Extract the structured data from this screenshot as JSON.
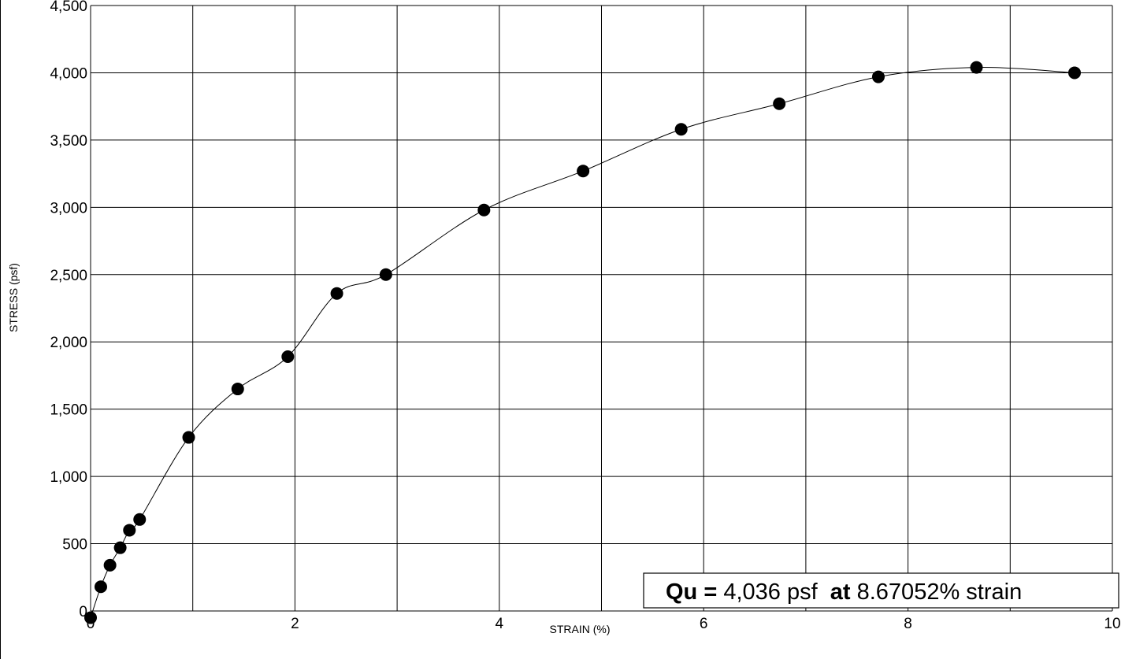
{
  "chart_data": {
    "type": "scatter",
    "xlabel": "STRAIN  (%)",
    "ylabel": "STRESS  (psf)",
    "xlim": [
      0,
      10
    ],
    "ylim": [
      0,
      4500
    ],
    "x_ticks": [
      0,
      2,
      4,
      6,
      8,
      10
    ],
    "x_tick_labels": [
      "0",
      "2",
      "4",
      "6",
      "8",
      "10"
    ],
    "y_ticks": [
      0,
      500,
      1000,
      1500,
      2000,
      2500,
      3000,
      3500,
      4000,
      4500
    ],
    "y_tick_labels": [
      "0",
      "500",
      "1,000",
      "1,500",
      "2,000",
      "2,500",
      "3,000",
      "3,500",
      "4,000",
      "4,500"
    ],
    "x_grid_lines": [
      1,
      2,
      3,
      4,
      5,
      6,
      7,
      8,
      9,
      10
    ],
    "y_grid_lines": [
      500,
      1000,
      1500,
      2000,
      2500,
      3000,
      3500,
      4000,
      4500
    ],
    "grid": true,
    "smooth_curve": true,
    "series": [
      {
        "x": [
          0.0,
          0.1,
          0.19,
          0.29,
          0.38,
          0.48,
          0.96,
          1.44,
          1.93,
          2.41,
          2.89,
          3.85,
          4.82,
          5.78,
          6.74,
          7.71,
          8.67,
          9.63
        ],
        "y": [
          -50,
          180,
          340,
          470,
          600,
          680,
          1290,
          1650,
          1890,
          2360,
          2500,
          2980,
          3270,
          3580,
          3770,
          3970,
          4040,
          4000
        ]
      }
    ],
    "annotation": {
      "part1_bold": "Qu =",
      "part2": " 4,036 psf  ",
      "part3_bold": "at",
      "part4": " 8.67052% strain"
    }
  }
}
